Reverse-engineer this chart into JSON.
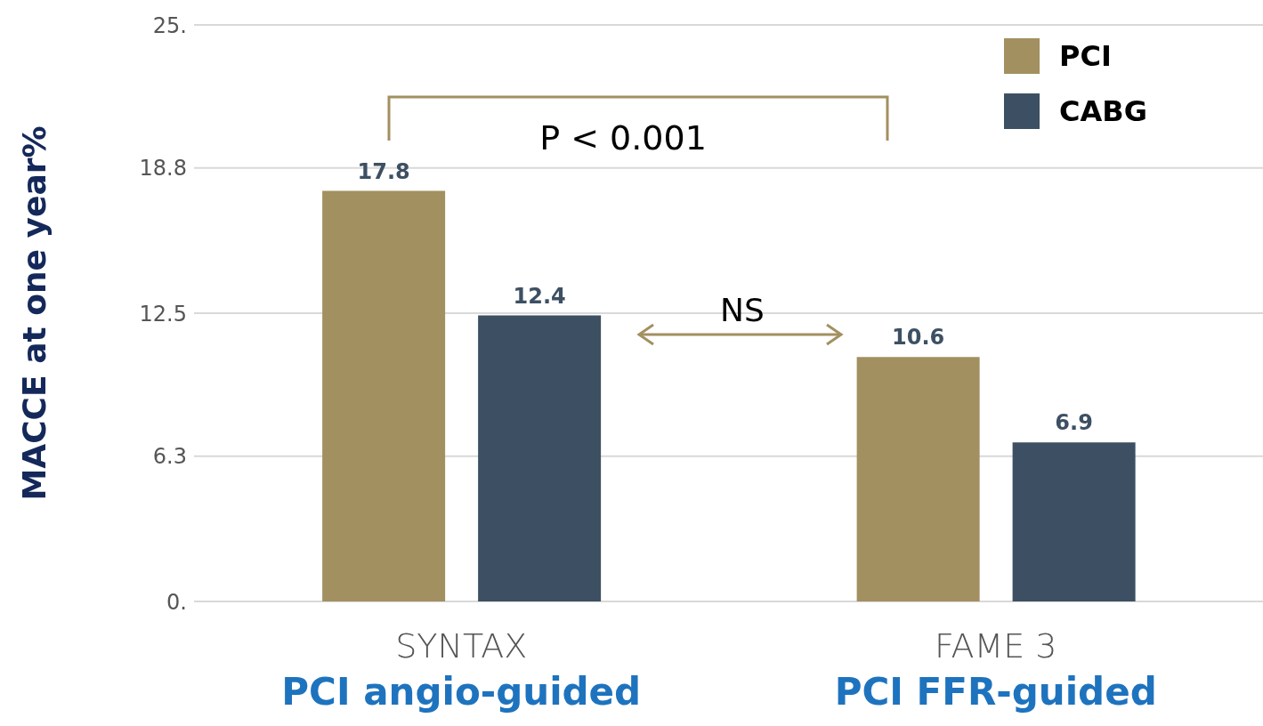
{
  "chart_data": {
    "type": "bar",
    "ylabel": "MACCE at one year%",
    "categories": [
      "SYNTAX",
      "FAME 3"
    ],
    "series": [
      {
        "name": "PCI",
        "color": "#a39060",
        "values": [
          17.8,
          10.6
        ]
      },
      {
        "name": "CABG",
        "color": "#3d5063",
        "values": [
          12.4,
          6.9
        ]
      }
    ],
    "ylim": [
      0,
      25
    ],
    "yticks": [
      {
        "value": 0,
        "label": "0."
      },
      6.3,
      12.5,
      18.8,
      {
        "value": 25,
        "label": "25."
      }
    ],
    "grid": "y",
    "legend": "top right",
    "data_labels": true,
    "annotations": [
      "P < 0.001",
      "NS",
      "PCI angio-guided",
      "PCI FFR-guided"
    ]
  }
}
